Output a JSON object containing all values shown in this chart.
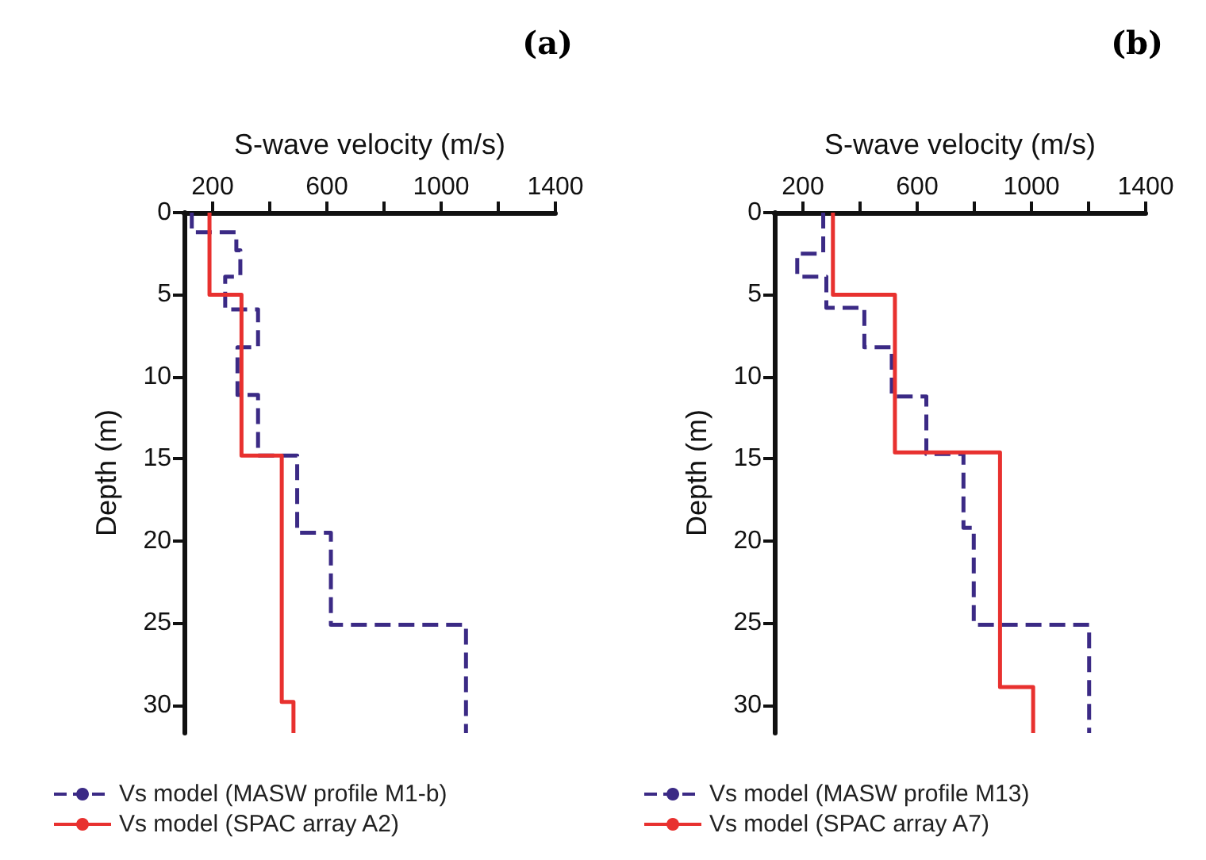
{
  "chart_data": [
    {
      "type": "line",
      "title": "(a)",
      "xlabel": "S-wave velocity (m/s)",
      "ylabel": "Depth (m)",
      "xlim": [
        100,
        1400
      ],
      "xticks": [
        200,
        {
          "value": 400,
          "label": null
        },
        600,
        {
          "value": 800,
          "label": null
        },
        1000,
        {
          "value": 1200,
          "label": null
        },
        1400
      ],
      "ylim": [
        31.7,
        0
      ],
      "yticks": [
        0,
        5,
        10,
        15,
        20,
        25,
        30
      ],
      "legend": "bottom",
      "marker": "none",
      "grid": false,
      "series": [
        {
          "name": "Vs model (MASW profile M1-b)",
          "color": "#3b2a85",
          "line_style": "dashed",
          "x": [
            127,
            127,
            283,
            283,
            297,
            297,
            244,
            244,
            359,
            359,
            287,
            287,
            359,
            359,
            496,
            496,
            614,
            614,
            1087,
            1087
          ],
          "values": [
            0,
            1.2,
            1.2,
            2.3,
            2.3,
            3.9,
            3.9,
            5.9,
            5.9,
            8.2,
            8.2,
            11.1,
            11.1,
            14.8,
            14.8,
            19.5,
            19.5,
            25.1,
            25.1,
            31.7
          ]
        },
        {
          "name": "Vs model (SPAC array A2)",
          "color": "#e8312f",
          "line_style": "solid",
          "x": [
            189,
            189,
            301,
            301,
            442,
            442,
            483,
            483
          ],
          "values": [
            0,
            5,
            5,
            14.8,
            14.8,
            29.8,
            29.8,
            31.7
          ]
        }
      ]
    },
    {
      "type": "line",
      "title": "(b)",
      "xlabel": "S-wave velocity (m/s)",
      "ylabel": "Depth (m)",
      "xlim": [
        100,
        1400
      ],
      "xticks": [
        200,
        {
          "value": 400,
          "label": null
        },
        600,
        {
          "value": 800,
          "label": null
        },
        1000,
        {
          "value": 1200,
          "label": null
        },
        1400
      ],
      "ylim": [
        31.7,
        0
      ],
      "yticks": [
        0,
        5,
        10,
        15,
        20,
        25,
        30
      ],
      "legend": "bottom",
      "marker": "none",
      "grid": false,
      "series": [
        {
          "name": "Vs model (MASW profile M13)",
          "color": "#3b2a85",
          "line_style": "dashed",
          "x": [
            271,
            271,
            180,
            180,
            282,
            282,
            415,
            415,
            511,
            511,
            632,
            632,
            762,
            762,
            798,
            798,
            1202,
            1202
          ],
          "values": [
            0,
            2.5,
            2.5,
            3.9,
            3.9,
            5.8,
            5.8,
            8.2,
            8.2,
            11.2,
            11.2,
            14.7,
            14.7,
            19.2,
            19.2,
            25.1,
            25.1,
            31.7
          ]
        },
        {
          "name": "Vs model (SPAC array A7)",
          "color": "#e8312f",
          "line_style": "solid",
          "x": [
            305,
            305,
            522,
            522,
            890,
            890,
            1006,
            1006
          ],
          "values": [
            0,
            5,
            5,
            14.6,
            14.6,
            28.9,
            28.9,
            31.7
          ]
        }
      ]
    }
  ]
}
